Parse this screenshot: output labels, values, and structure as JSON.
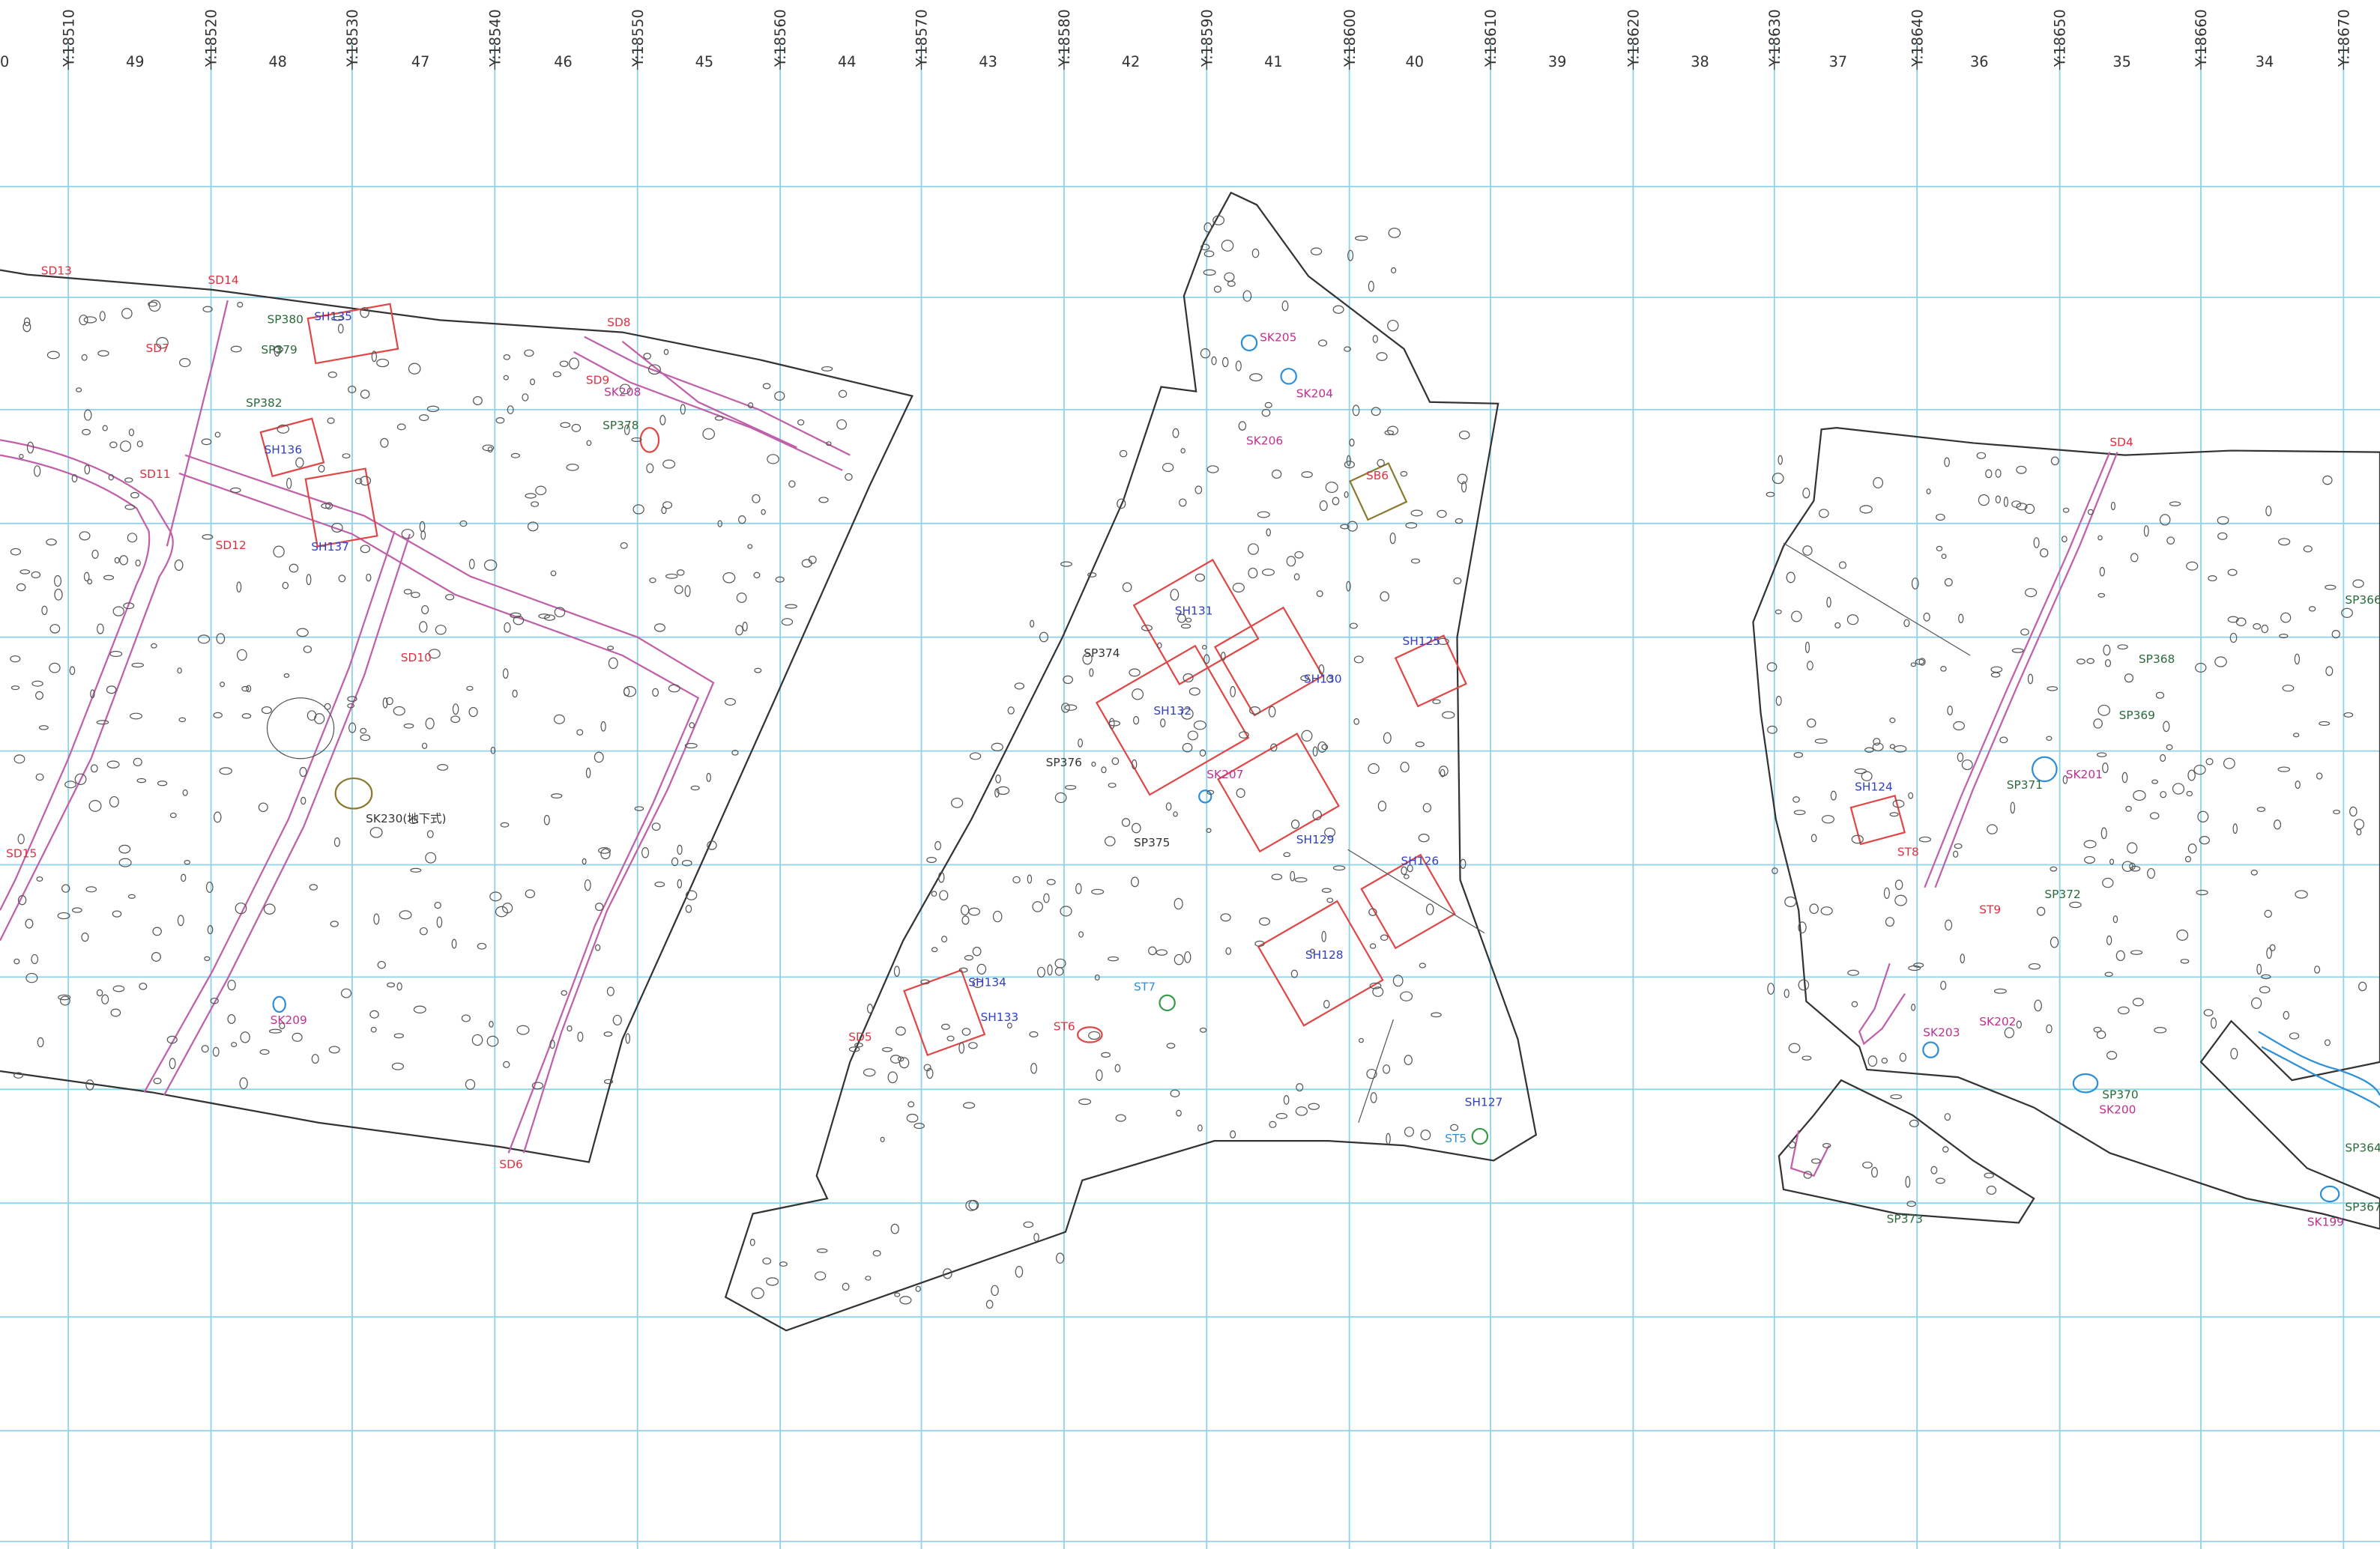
{
  "axis_top": {
    "y_labels": [
      "Y:18510",
      "Y:18520",
      "Y:18530",
      "Y:18540",
      "Y:18550",
      "Y:18560",
      "Y:18570",
      "Y:18580",
      "Y:18590",
      "Y:18600",
      "Y:18610",
      "Y:18620",
      "Y:18630",
      "Y:18640",
      "Y:18650",
      "Y:18660",
      "Y:18670"
    ],
    "column_numbers": [
      "0",
      "49",
      "48",
      "47",
      "46",
      "45",
      "44",
      "43",
      "42",
      "41",
      "40",
      "39",
      "38",
      "37",
      "36",
      "35",
      "34"
    ]
  },
  "colors": {
    "grid": "#8fd3e8",
    "ditch_sd": "#e03040",
    "pit_sk": "#c03090",
    "pillar_sp": "#2a6a3a",
    "building_sh": "#3040c0",
    "ditch_lines": "#c060a8",
    "structure_red": "#e04848",
    "outline": "#333333"
  },
  "labels": [
    {
      "id": "SD13",
      "color": "#e03040"
    },
    {
      "id": "SD14",
      "color": "#e03040"
    },
    {
      "id": "SP380",
      "color": "#2a6a3a"
    },
    {
      "id": "SH135",
      "color": "#3040c0"
    },
    {
      "id": "SD7",
      "color": "#e03040"
    },
    {
      "id": "SP379",
      "color": "#2a6a3a"
    },
    {
      "id": "SD8",
      "color": "#e03040"
    },
    {
      "id": "SD9",
      "color": "#e03040"
    },
    {
      "id": "SK208",
      "color": "#c03090"
    },
    {
      "id": "SP382",
      "color": "#2a6a3a"
    },
    {
      "id": "SP378",
      "color": "#2a6a3a"
    },
    {
      "id": "SH136",
      "color": "#3040c0"
    },
    {
      "id": "SD11",
      "color": "#e03040"
    },
    {
      "id": "SD12",
      "color": "#e03040"
    },
    {
      "id": "SH137",
      "color": "#3040c0"
    },
    {
      "id": "SD10",
      "color": "#e03040"
    },
    {
      "id": "SK230(地下式)",
      "color": "#333333"
    },
    {
      "id": "SD15",
      "color": "#e03040"
    },
    {
      "id": "SK209",
      "color": "#c03090"
    },
    {
      "id": "SD6",
      "color": "#e03040"
    },
    {
      "id": "SK205",
      "color": "#c03090"
    },
    {
      "id": "SK204",
      "color": "#c03090"
    },
    {
      "id": "SK206",
      "color": "#c03090"
    },
    {
      "id": "SB6",
      "color": "#e03040"
    },
    {
      "id": "SH131",
      "color": "#3040c0"
    },
    {
      "id": "SP374",
      "color": "#333333"
    },
    {
      "id": "SH125",
      "color": "#3040c0"
    },
    {
      "id": "SH130",
      "color": "#3040c0"
    },
    {
      "id": "SH132",
      "color": "#3040c0"
    },
    {
      "id": "SP376",
      "color": "#333333"
    },
    {
      "id": "SK207",
      "color": "#c03090"
    },
    {
      "id": "SH129",
      "color": "#3040c0"
    },
    {
      "id": "SP375",
      "color": "#333333"
    },
    {
      "id": "SH126",
      "color": "#3040c0"
    },
    {
      "id": "SH128",
      "color": "#3040c0"
    },
    {
      "id": "SH134",
      "color": "#3040c0"
    },
    {
      "id": "ST7",
      "color": "#2e8fd8"
    },
    {
      "id": "SH133",
      "color": "#3040c0"
    },
    {
      "id": "ST6",
      "color": "#e03040"
    },
    {
      "id": "SD5",
      "color": "#e03040"
    },
    {
      "id": "SH127",
      "color": "#3040c0"
    },
    {
      "id": "ST5",
      "color": "#2e8fd8"
    },
    {
      "id": "SD4",
      "color": "#e03040"
    },
    {
      "id": "SP366",
      "color": "#2a6a3a"
    },
    {
      "id": "SP368",
      "color": "#2a6a3a"
    },
    {
      "id": "SP369",
      "color": "#2a6a3a"
    },
    {
      "id": "SP371",
      "color": "#2a6a3a"
    },
    {
      "id": "SK201",
      "color": "#c03090"
    },
    {
      "id": "SH124",
      "color": "#3040c0"
    },
    {
      "id": "ST8",
      "color": "#e03040"
    },
    {
      "id": "SP372",
      "color": "#2a6a3a"
    },
    {
      "id": "ST9",
      "color": "#e03040"
    },
    {
      "id": "SK203",
      "color": "#c03090"
    },
    {
      "id": "SK202",
      "color": "#c03090"
    },
    {
      "id": "SP370",
      "color": "#2a6a3a"
    },
    {
      "id": "SK200",
      "color": "#c03090"
    },
    {
      "id": "SP364",
      "color": "#2a6a3a"
    },
    {
      "id": "SP367",
      "color": "#2a6a3a"
    },
    {
      "id": "SK199",
      "color": "#c03090"
    },
    {
      "id": "SP373",
      "color": "#2a6a3a"
    }
  ]
}
